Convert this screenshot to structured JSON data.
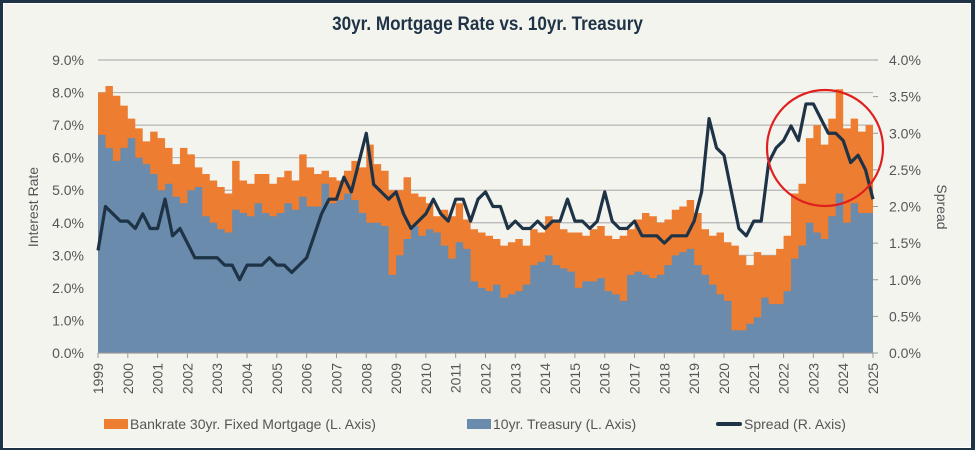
{
  "chart_data": {
    "type": "area",
    "title": "30yr. Mortgage Rate vs. 10yr. Treasury",
    "ylabel_left": "Interest Rate",
    "ylabel_right": "Spread",
    "ylim_left": [
      0,
      9
    ],
    "ylim_right": [
      0,
      4
    ],
    "yticks_left": [
      "0.0%",
      "1.0%",
      "2.0%",
      "3.0%",
      "4.0%",
      "5.0%",
      "6.0%",
      "7.0%",
      "8.0%",
      "9.0%"
    ],
    "yticks_right": [
      "0.0%",
      "0.5%",
      "1.0%",
      "1.5%",
      "2.0%",
      "2.5%",
      "3.0%",
      "3.5%",
      "4.0%"
    ],
    "xlim": [
      1999,
      2025
    ],
    "xticks": [
      "1999",
      "2000",
      "2001",
      "2002",
      "2003",
      "2004",
      "2005",
      "2006",
      "2007",
      "2008",
      "2009",
      "2010",
      "2011",
      "2012",
      "2013",
      "2014",
      "2015",
      "2016",
      "2017",
      "2018",
      "2019",
      "2020",
      "2021",
      "2022",
      "2023",
      "2024",
      "2025"
    ],
    "grid": true,
    "legend_position": "bottom",
    "colors": {
      "mortgage": "#ed7d31",
      "treasury": "#6a8bab",
      "spread": "#1f3347",
      "annotation": "#e0201e"
    },
    "x": [
      1999.0,
      1999.25,
      1999.5,
      1999.75,
      2000.0,
      2000.25,
      2000.5,
      2000.75,
      2001.0,
      2001.25,
      2001.5,
      2001.75,
      2002.0,
      2002.25,
      2002.5,
      2002.75,
      2003.0,
      2003.25,
      2003.5,
      2003.75,
      2004.0,
      2004.25,
      2004.5,
      2004.75,
      2005.0,
      2005.25,
      2005.5,
      2005.75,
      2006.0,
      2006.25,
      2006.5,
      2006.75,
      2007.0,
      2007.25,
      2007.5,
      2007.75,
      2008.0,
      2008.25,
      2008.5,
      2008.75,
      2009.0,
      2009.25,
      2009.5,
      2009.75,
      2010.0,
      2010.25,
      2010.5,
      2010.75,
      2011.0,
      2011.25,
      2011.5,
      2011.75,
      2012.0,
      2012.25,
      2012.5,
      2012.75,
      2013.0,
      2013.25,
      2013.5,
      2013.75,
      2014.0,
      2014.25,
      2014.5,
      2014.75,
      2015.0,
      2015.25,
      2015.5,
      2015.75,
      2016.0,
      2016.25,
      2016.5,
      2016.75,
      2017.0,
      2017.25,
      2017.5,
      2017.75,
      2018.0,
      2018.25,
      2018.5,
      2018.75,
      2019.0,
      2019.25,
      2019.5,
      2019.75,
      2020.0,
      2020.25,
      2020.5,
      2020.75,
      2021.0,
      2021.25,
      2021.5,
      2021.75,
      2022.0,
      2022.25,
      2022.5,
      2022.75,
      2023.0,
      2023.25,
      2023.5,
      2023.75,
      2024.0,
      2024.25,
      2024.5,
      2024.75,
      2025.0
    ],
    "series": [
      {
        "name": "Bankrate 30yr. Fixed Mortgage (L. Axis)",
        "axis": "left",
        "values": [
          8.0,
          8.2,
          7.9,
          7.6,
          7.2,
          6.9,
          6.5,
          6.8,
          6.6,
          6.3,
          5.8,
          6.3,
          6.1,
          5.7,
          5.5,
          5.3,
          5.1,
          4.9,
          5.9,
          5.3,
          5.2,
          5.5,
          5.5,
          5.2,
          5.4,
          5.6,
          5.3,
          6.1,
          5.7,
          5.5,
          5.6,
          5.4,
          5.3,
          5.6,
          5.9,
          5.7,
          6.4,
          5.8,
          5.6,
          5.0,
          5.0,
          5.4,
          4.9,
          4.8,
          4.6,
          4.2,
          4.4,
          4.2,
          4.6,
          4.1,
          3.8,
          3.7,
          3.6,
          3.5,
          3.3,
          3.4,
          3.5,
          3.3,
          3.8,
          3.7,
          4.2,
          4.0,
          3.8,
          3.7,
          3.7,
          3.6,
          3.8,
          3.9,
          3.6,
          3.5,
          3.6,
          3.8,
          4.1,
          4.3,
          4.2,
          4.0,
          4.1,
          4.4,
          4.5,
          4.7,
          4.3,
          3.8,
          3.6,
          3.7,
          3.4,
          3.3,
          3.0,
          2.7,
          3.1,
          3.0,
          3.0,
          3.2,
          3.6,
          4.9,
          5.2,
          6.6,
          7.0,
          6.4,
          7.2,
          8.1,
          6.9,
          7.2,
          6.8,
          7.0,
          6.9
        ]
      },
      {
        "name": "10yr. Treasury (L. Axis)",
        "axis": "left",
        "values": [
          6.7,
          6.3,
          5.9,
          6.3,
          6.6,
          6.0,
          5.8,
          5.5,
          5.0,
          5.2,
          4.8,
          4.6,
          5.0,
          5.1,
          4.2,
          4.0,
          3.8,
          3.7,
          4.4,
          4.3,
          4.2,
          4.6,
          4.3,
          4.2,
          4.3,
          4.6,
          4.4,
          4.8,
          4.5,
          4.5,
          5.2,
          4.6,
          4.7,
          4.9,
          4.7,
          4.3,
          4.0,
          4.0,
          3.9,
          2.4,
          3.0,
          3.5,
          3.9,
          3.6,
          3.8,
          3.7,
          3.3,
          2.9,
          3.4,
          3.2,
          2.2,
          2.0,
          1.9,
          2.1,
          1.7,
          1.8,
          1.9,
          2.1,
          2.7,
          2.8,
          3.0,
          2.7,
          2.6,
          2.5,
          2.0,
          2.2,
          2.2,
          2.3,
          1.9,
          1.8,
          1.6,
          2.4,
          2.5,
          2.4,
          2.3,
          2.4,
          2.7,
          3.0,
          3.1,
          3.2,
          2.7,
          2.4,
          2.1,
          1.8,
          1.6,
          0.7,
          0.7,
          0.9,
          1.1,
          1.7,
          1.5,
          1.5,
          1.9,
          2.9,
          3.3,
          4.0,
          3.7,
          3.5,
          4.2,
          4.9,
          4.0,
          4.6,
          4.3,
          4.3,
          4.4
        ]
      },
      {
        "name": "Spread (R. Axis)",
        "axis": "right",
        "values": [
          1.4,
          2.0,
          1.9,
          1.8,
          1.8,
          1.7,
          1.9,
          1.7,
          1.7,
          2.1,
          1.6,
          1.7,
          1.5,
          1.3,
          1.3,
          1.3,
          1.3,
          1.2,
          1.2,
          1.0,
          1.2,
          1.2,
          1.2,
          1.3,
          1.2,
          1.2,
          1.1,
          1.2,
          1.3,
          1.6,
          1.9,
          2.1,
          2.1,
          2.4,
          2.2,
          2.6,
          3.0,
          2.3,
          2.2,
          2.1,
          2.2,
          1.9,
          1.7,
          1.8,
          1.9,
          2.1,
          1.9,
          1.8,
          2.1,
          2.1,
          1.8,
          2.1,
          2.2,
          2.0,
          2.0,
          1.7,
          1.8,
          1.7,
          1.7,
          1.8,
          1.7,
          1.8,
          1.8,
          2.1,
          1.8,
          1.8,
          1.7,
          1.8,
          2.2,
          1.8,
          1.7,
          1.7,
          1.8,
          1.6,
          1.6,
          1.6,
          1.5,
          1.6,
          1.6,
          1.6,
          1.8,
          2.2,
          3.2,
          2.8,
          2.7,
          2.2,
          1.7,
          1.6,
          1.8,
          1.8,
          2.6,
          2.8,
          2.9,
          3.1,
          2.9,
          3.4,
          3.4,
          3.2,
          3.0,
          3.0,
          2.9,
          2.6,
          2.7,
          2.5,
          2.1
        ]
      }
    ],
    "annotation": "circle-2022-2024"
  },
  "legend": {
    "mortgage": "Bankrate 30yr. Fixed Mortgage (L. Axis)",
    "treasury": "10yr. Treasury (L. Axis)",
    "spread": "Spread (R. Axis)"
  }
}
